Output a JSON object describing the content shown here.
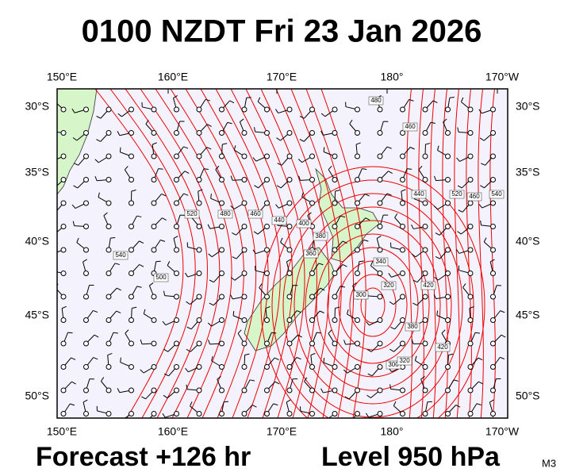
{
  "header": {
    "title": "0100 NZDT Fri 23 Jan 2026"
  },
  "axes": {
    "lon_labels": [
      "150°E",
      "160°E",
      "170°E",
      "180°",
      "170°W"
    ],
    "lat_labels": [
      "30°S",
      "35°S",
      "40°S",
      "45°S",
      "50°S"
    ]
  },
  "contour_labels": [
    "480",
    "460",
    "440",
    "520",
    "540",
    "540",
    "500",
    "520",
    "480",
    "460",
    "440",
    "420",
    "400",
    "380",
    "360",
    "340",
    "320",
    "300",
    "300",
    "320",
    "380",
    "420",
    "460"
  ],
  "footer": {
    "forecast": "Forecast +126 hr",
    "level": "Level 950 hPa",
    "model": "M3"
  }
}
